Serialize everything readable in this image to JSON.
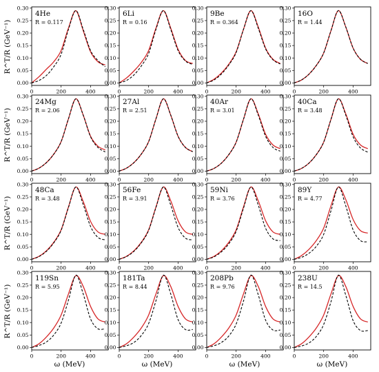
{
  "chart_data": {
    "type": "line",
    "layout": "4x4 grid",
    "xlabel": "ω (MeV)",
    "ylabel": "R^T/R (GeV⁻¹)",
    "xlim": [
      0,
      520
    ],
    "ylim": [
      -0.01,
      0.305
    ],
    "xticks": [
      0,
      200,
      400
    ],
    "yticks": [
      0.0,
      0.05,
      0.1,
      0.15,
      0.2,
      0.25,
      0.3
    ],
    "ytick_labels": [
      "0.00",
      "0.05",
      "0.10",
      "0.15",
      "0.20",
      "0.25",
      "0.30"
    ],
    "x": [
      0,
      50,
      100,
      150,
      200,
      250,
      300,
      350,
      400,
      450,
      500
    ],
    "series_style": {
      "solid": "#d62728",
      "dashed": "#000000"
    },
    "panels": [
      {
        "title": "4He",
        "r_label": "R = 0.117",
        "solid": [
          0.0,
          0.025,
          0.055,
          0.085,
          0.13,
          0.22,
          0.29,
          0.21,
          0.125,
          0.085,
          0.072
        ],
        "dashed": [
          0.0,
          0.01,
          0.03,
          0.065,
          0.115,
          0.215,
          0.29,
          0.215,
          0.13,
          0.09,
          0.065
        ]
      },
      {
        "title": "6Li",
        "r_label": "R = 0.16",
        "solid": [
          0.0,
          0.02,
          0.048,
          0.082,
          0.13,
          0.22,
          0.29,
          0.22,
          0.135,
          0.09,
          0.078
        ],
        "dashed": [
          0.0,
          0.01,
          0.032,
          0.068,
          0.118,
          0.215,
          0.29,
          0.215,
          0.13,
          0.088,
          0.074
        ]
      },
      {
        "title": "9Be",
        "r_label": "R = 0.364",
        "solid": [
          0.0,
          0.015,
          0.04,
          0.075,
          0.125,
          0.215,
          0.29,
          0.225,
          0.14,
          0.095,
          0.078
        ],
        "dashed": [
          0.0,
          0.012,
          0.036,
          0.072,
          0.122,
          0.215,
          0.29,
          0.22,
          0.137,
          0.093,
          0.076
        ]
      },
      {
        "title": "16O",
        "r_label": "R = 1.44",
        "solid": [
          0.0,
          0.012,
          0.035,
          0.07,
          0.12,
          0.21,
          0.29,
          0.225,
          0.14,
          0.095,
          0.078
        ],
        "dashed": [
          0.0,
          0.012,
          0.035,
          0.07,
          0.12,
          0.21,
          0.29,
          0.225,
          0.14,
          0.095,
          0.078
        ]
      },
      {
        "title": "24Mg",
        "r_label": "R = 2.06",
        "solid": [
          0.0,
          0.012,
          0.034,
          0.068,
          0.118,
          0.21,
          0.29,
          0.225,
          0.14,
          0.1,
          0.085
        ],
        "dashed": [
          0.0,
          0.012,
          0.034,
          0.068,
          0.118,
          0.21,
          0.29,
          0.225,
          0.138,
          0.095,
          0.077
        ]
      },
      {
        "title": "27Al",
        "r_label": "R = 2.51",
        "solid": [
          0.0,
          0.012,
          0.034,
          0.068,
          0.118,
          0.21,
          0.29,
          0.225,
          0.14,
          0.095,
          0.078
        ],
        "dashed": [
          0.0,
          0.012,
          0.034,
          0.068,
          0.118,
          0.21,
          0.29,
          0.225,
          0.14,
          0.095,
          0.078
        ]
      },
      {
        "title": "40Ar",
        "r_label": "R = 3.01",
        "solid": [
          0.0,
          0.011,
          0.032,
          0.066,
          0.116,
          0.208,
          0.29,
          0.23,
          0.148,
          0.105,
          0.09
        ],
        "dashed": [
          0.0,
          0.011,
          0.032,
          0.066,
          0.116,
          0.208,
          0.29,
          0.225,
          0.14,
          0.095,
          0.08
        ]
      },
      {
        "title": "40Ca",
        "r_label": "R = 3.48",
        "solid": [
          0.0,
          0.011,
          0.032,
          0.066,
          0.116,
          0.208,
          0.29,
          0.23,
          0.148,
          0.105,
          0.09
        ],
        "dashed": [
          0.0,
          0.011,
          0.032,
          0.066,
          0.116,
          0.208,
          0.29,
          0.225,
          0.138,
          0.093,
          0.076
        ]
      },
      {
        "title": "48Ca",
        "r_label": "R = 3.48",
        "solid": [
          0.0,
          0.012,
          0.034,
          0.068,
          0.118,
          0.21,
          0.29,
          0.232,
          0.152,
          0.11,
          0.1
        ],
        "dashed": [
          0.0,
          0.011,
          0.032,
          0.066,
          0.116,
          0.208,
          0.29,
          0.22,
          0.132,
          0.088,
          0.078
        ]
      },
      {
        "title": "56Fe",
        "r_label": "R = 3.91",
        "solid": [
          0.0,
          0.012,
          0.034,
          0.068,
          0.118,
          0.21,
          0.29,
          0.235,
          0.155,
          0.11,
          0.1
        ],
        "dashed": [
          0.0,
          0.011,
          0.032,
          0.066,
          0.116,
          0.208,
          0.29,
          0.218,
          0.128,
          0.085,
          0.078
        ]
      },
      {
        "title": "59Ni",
        "r_label": "R = 3.76",
        "solid": [
          0.0,
          0.012,
          0.034,
          0.068,
          0.118,
          0.21,
          0.29,
          0.235,
          0.155,
          0.11,
          0.1
        ],
        "dashed": [
          0.0,
          0.01,
          0.03,
          0.062,
          0.112,
          0.205,
          0.29,
          0.218,
          0.125,
          0.082,
          0.075
        ]
      },
      {
        "title": "89Y",
        "r_label": "R = 4.77",
        "solid": [
          0.0,
          0.015,
          0.04,
          0.075,
          0.125,
          0.215,
          0.29,
          0.24,
          0.16,
          0.115,
          0.105
        ],
        "dashed": [
          0.0,
          0.008,
          0.024,
          0.052,
          0.1,
          0.195,
          0.29,
          0.215,
          0.118,
          0.075,
          0.07
        ]
      },
      {
        "title": "119Sn",
        "r_label": "R = 5.95",
        "solid": [
          0.0,
          0.015,
          0.042,
          0.078,
          0.13,
          0.215,
          0.288,
          0.245,
          0.165,
          0.115,
          0.102
        ],
        "dashed": [
          0.0,
          0.008,
          0.022,
          0.05,
          0.098,
          0.19,
          0.29,
          0.215,
          0.115,
          0.075,
          0.075
        ]
      },
      {
        "title": "181Ta",
        "r_label": "R = 8.44",
        "solid": [
          0.0,
          0.015,
          0.042,
          0.078,
          0.13,
          0.215,
          0.288,
          0.245,
          0.165,
          0.115,
          0.102
        ],
        "dashed": [
          0.0,
          0.007,
          0.02,
          0.048,
          0.096,
          0.188,
          0.29,
          0.215,
          0.112,
          0.072,
          0.072
        ]
      },
      {
        "title": "208Pb",
        "r_label": "R = 9.76",
        "solid": [
          0.0,
          0.015,
          0.042,
          0.078,
          0.13,
          0.215,
          0.288,
          0.245,
          0.165,
          0.115,
          0.102
        ],
        "dashed": [
          0.0,
          0.007,
          0.02,
          0.046,
          0.094,
          0.186,
          0.29,
          0.212,
          0.11,
          0.07,
          0.07
        ]
      },
      {
        "title": "238U",
        "r_label": "R = 14.5",
        "solid": [
          0.0,
          0.015,
          0.042,
          0.078,
          0.13,
          0.215,
          0.288,
          0.245,
          0.165,
          0.115,
          0.102
        ],
        "dashed": [
          0.0,
          0.006,
          0.018,
          0.044,
          0.092,
          0.184,
          0.29,
          0.21,
          0.108,
          0.068,
          0.068
        ]
      }
    ]
  }
}
